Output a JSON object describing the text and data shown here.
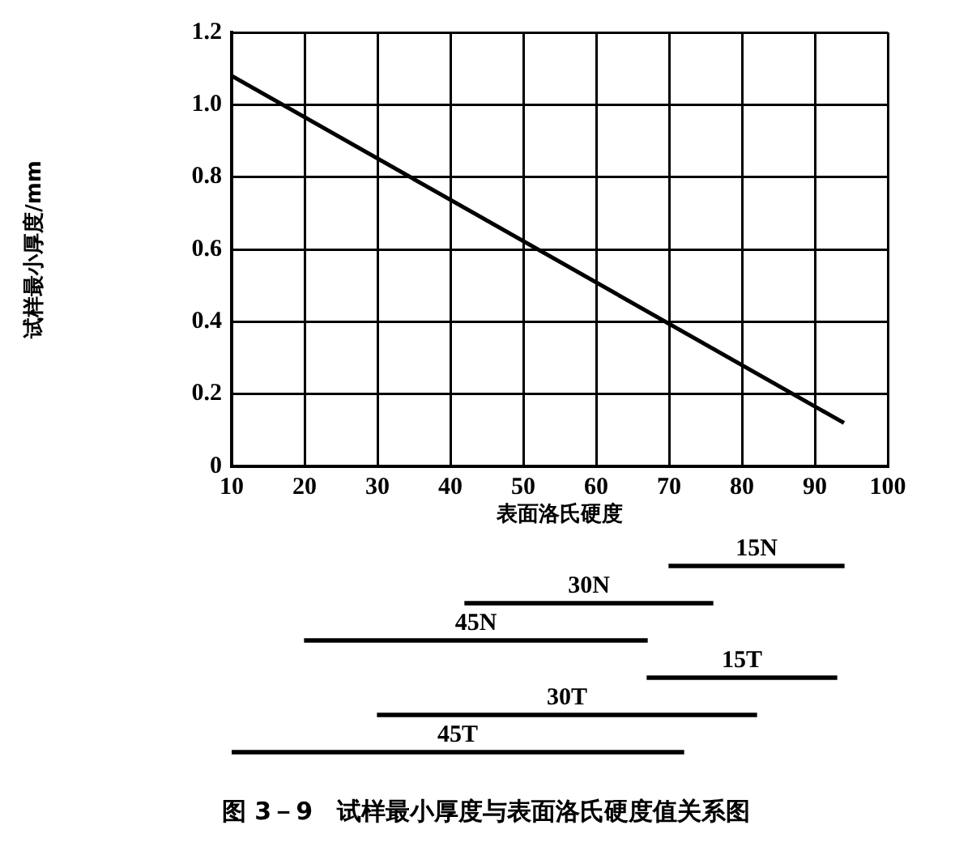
{
  "chart_data": [
    {
      "type": "line",
      "xlabel": "表面洛氏硬度",
      "ylabel": "试样最小厚度/mm",
      "x": [
        10,
        94
      ],
      "series": [
        {
          "color": "#000000",
          "values": [
            1.08,
            0.12
          ]
        }
      ],
      "xlim": [
        10,
        100
      ],
      "xticks": [
        10,
        20,
        30,
        40,
        50,
        60,
        70,
        80,
        90,
        100
      ],
      "ylim": [
        0,
        1.2
      ],
      "yticks": [
        0,
        0.2,
        0.4,
        0.6,
        0.8,
        {
          "value": 1,
          "label": "1.0"
        },
        1.2
      ],
      "grid": true,
      "marker": "none",
      "line_style": "solid"
    },
    {
      "type": "bar",
      "orientation": "horizontal",
      "categories": [
        "15N",
        "30N",
        "45N",
        "15T",
        "30T",
        "45T"
      ],
      "base": [
        70,
        42,
        20,
        67,
        30,
        10
      ],
      "values": [
        24,
        34,
        47,
        26,
        52,
        62
      ],
      "color": "#000000",
      "xlim": [
        10,
        100
      ],
      "annotations": [
        "图 3－9　试样最小厚度与表面洛氏硬度值关系图"
      ]
    }
  ]
}
